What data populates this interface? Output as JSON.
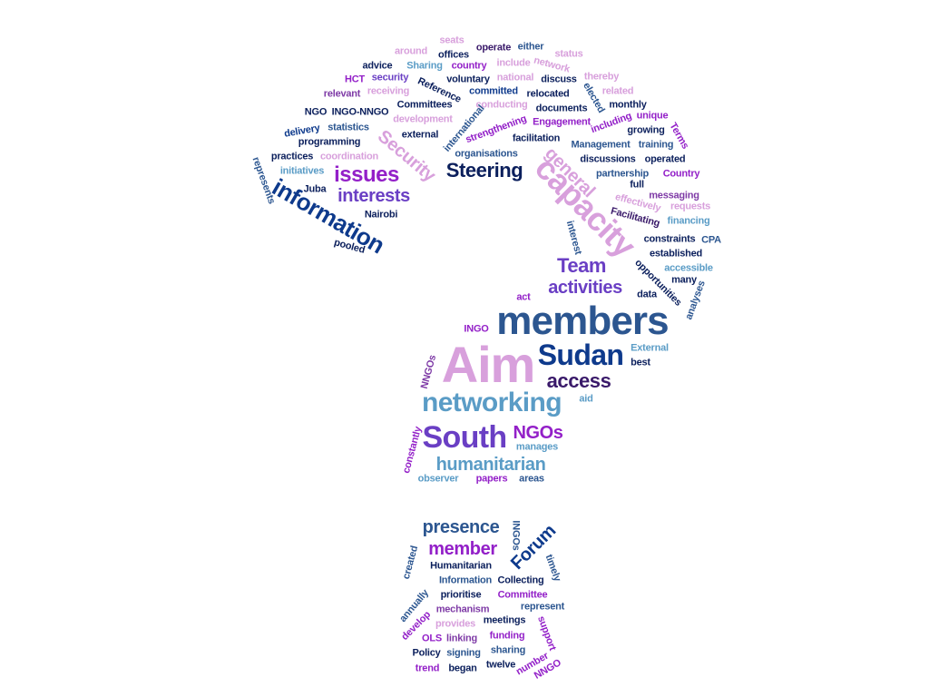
{
  "palette": {
    "navy": "#0b1f5c",
    "dark_blue": "#0e3a8c",
    "slate_blue": "#2c5690",
    "light_blue": "#5a9cc6",
    "purple": "#6a3fc4",
    "magenta": "#9320c8",
    "violet": "#7e3aa6",
    "pink": "#d8a0dc",
    "dark_purple": "#3a1a6a"
  },
  "words": [
    {
      "text": "members",
      "color": "slate_blue"
    },
    {
      "text": "Aim",
      "color": "pink"
    },
    {
      "text": "Sudan",
      "color": "dark_blue"
    },
    {
      "text": "networking",
      "color": "light_blue"
    },
    {
      "text": "South",
      "color": "purple"
    },
    {
      "text": "capacity",
      "color": "pink"
    },
    {
      "text": "information",
      "color": "dark_blue"
    },
    {
      "text": "issues",
      "color": "magenta"
    },
    {
      "text": "interests",
      "color": "purple"
    },
    {
      "text": "Steering",
      "color": "navy"
    },
    {
      "text": "Security",
      "color": "pink"
    },
    {
      "text": "general",
      "color": "pink"
    },
    {
      "text": "Team",
      "color": "purple"
    },
    {
      "text": "activities",
      "color": "purple"
    },
    {
      "text": "access",
      "color": "dark_purple"
    },
    {
      "text": "humanitarian",
      "color": "light_blue"
    },
    {
      "text": "NGOs",
      "color": "magenta"
    },
    {
      "text": "presence",
      "color": "slate_blue"
    },
    {
      "text": "member",
      "color": "magenta"
    },
    {
      "text": "Forum",
      "color": "dark_blue"
    },
    {
      "text": "seats",
      "color": "pink"
    },
    {
      "text": "around",
      "color": "pink"
    },
    {
      "text": "operate",
      "color": "dark_purple"
    },
    {
      "text": "either",
      "color": "slate_blue"
    },
    {
      "text": "offices",
      "color": "navy"
    },
    {
      "text": "status",
      "color": "pink"
    },
    {
      "text": "advice",
      "color": "navy"
    },
    {
      "text": "Sharing",
      "color": "light_blue"
    },
    {
      "text": "country",
      "color": "magenta"
    },
    {
      "text": "include",
      "color": "pink"
    },
    {
      "text": "network",
      "color": "pink"
    },
    {
      "text": "HCT",
      "color": "magenta"
    },
    {
      "text": "security",
      "color": "purple"
    },
    {
      "text": "voluntary",
      "color": "navy"
    },
    {
      "text": "national",
      "color": "pink"
    },
    {
      "text": "discuss",
      "color": "navy"
    },
    {
      "text": "thereby",
      "color": "pink"
    },
    {
      "text": "relevant",
      "color": "violet"
    },
    {
      "text": "receiving",
      "color": "pink"
    },
    {
      "text": "Reference",
      "color": "navy"
    },
    {
      "text": "committed",
      "color": "dark_blue"
    },
    {
      "text": "relocated",
      "color": "navy"
    },
    {
      "text": "elected",
      "color": "slate_blue"
    },
    {
      "text": "related",
      "color": "pink"
    },
    {
      "text": "Committees",
      "color": "navy"
    },
    {
      "text": "conducting",
      "color": "pink"
    },
    {
      "text": "documents",
      "color": "navy"
    },
    {
      "text": "monthly",
      "color": "navy"
    },
    {
      "text": "NGO",
      "color": "navy"
    },
    {
      "text": "INGO-NNGO",
      "color": "navy"
    },
    {
      "text": "development",
      "color": "pink"
    },
    {
      "text": "international",
      "color": "slate_blue"
    },
    {
      "text": "Engagement",
      "color": "magenta"
    },
    {
      "text": "including",
      "color": "magenta"
    },
    {
      "text": "unique",
      "color": "magenta"
    },
    {
      "text": "Terms",
      "color": "magenta"
    },
    {
      "text": "delivery",
      "color": "dark_blue"
    },
    {
      "text": "statistics",
      "color": "slate_blue"
    },
    {
      "text": "strengthening",
      "color": "magenta"
    },
    {
      "text": "growing",
      "color": "navy"
    },
    {
      "text": "external",
      "color": "navy"
    },
    {
      "text": "facilitation",
      "color": "navy"
    },
    {
      "text": "programming",
      "color": "navy"
    },
    {
      "text": "Management",
      "color": "slate_blue"
    },
    {
      "text": "training",
      "color": "slate_blue"
    },
    {
      "text": "organisations",
      "color": "slate_blue"
    },
    {
      "text": "discussions",
      "color": "navy"
    },
    {
      "text": "operated",
      "color": "navy"
    },
    {
      "text": "practices",
      "color": "navy"
    },
    {
      "text": "coordination",
      "color": "pink"
    },
    {
      "text": "initiatives",
      "color": "light_blue"
    },
    {
      "text": "partnership",
      "color": "slate_blue"
    },
    {
      "text": "Country",
      "color": "magenta"
    },
    {
      "text": "represents",
      "color": "slate_blue"
    },
    {
      "text": "Juba",
      "color": "navy"
    },
    {
      "text": "full",
      "color": "navy"
    },
    {
      "text": "messaging",
      "color": "violet"
    },
    {
      "text": "effectively",
      "color": "pink"
    },
    {
      "text": "requests",
      "color": "pink"
    },
    {
      "text": "Facilitating",
      "color": "dark_purple"
    },
    {
      "text": "Nairobi",
      "color": "navy"
    },
    {
      "text": "financing",
      "color": "light_blue"
    },
    {
      "text": "interest",
      "color": "slate_blue"
    },
    {
      "text": "constraints",
      "color": "navy"
    },
    {
      "text": "CPA",
      "color": "slate_blue"
    },
    {
      "text": "pooled",
      "color": "navy"
    },
    {
      "text": "established",
      "color": "navy"
    },
    {
      "text": "opportunities",
      "color": "navy"
    },
    {
      "text": "accessible",
      "color": "light_blue"
    },
    {
      "text": "many",
      "color": "navy"
    },
    {
      "text": "analyses",
      "color": "slate_blue"
    },
    {
      "text": "data",
      "color": "navy"
    },
    {
      "text": "act",
      "color": "magenta"
    },
    {
      "text": "INGO",
      "color": "magenta"
    },
    {
      "text": "External",
      "color": "light_blue"
    },
    {
      "text": "best",
      "color": "navy"
    },
    {
      "text": "NNGOs",
      "color": "violet"
    },
    {
      "text": "aid",
      "color": "light_blue"
    },
    {
      "text": "constantly",
      "color": "magenta"
    },
    {
      "text": "manages",
      "color": "light_blue"
    },
    {
      "text": "observer",
      "color": "light_blue"
    },
    {
      "text": "papers",
      "color": "magenta"
    },
    {
      "text": "areas",
      "color": "slate_blue"
    },
    {
      "text": "INGOs",
      "color": "slate_blue"
    },
    {
      "text": "timely",
      "color": "slate_blue"
    },
    {
      "text": "created",
      "color": "slate_blue"
    },
    {
      "text": "Humanitarian",
      "color": "navy"
    },
    {
      "text": "Information",
      "color": "slate_blue"
    },
    {
      "text": "Collecting",
      "color": "navy"
    },
    {
      "text": "annually",
      "color": "slate_blue"
    },
    {
      "text": "prioritise",
      "color": "navy"
    },
    {
      "text": "Committee",
      "color": "magenta"
    },
    {
      "text": "represent",
      "color": "slate_blue"
    },
    {
      "text": "develop",
      "color": "magenta"
    },
    {
      "text": "mechanism",
      "color": "violet"
    },
    {
      "text": "meetings",
      "color": "navy"
    },
    {
      "text": "support",
      "color": "magenta"
    },
    {
      "text": "provides",
      "color": "pink"
    },
    {
      "text": "OLS",
      "color": "magenta"
    },
    {
      "text": "linking",
      "color": "violet"
    },
    {
      "text": "funding",
      "color": "magenta"
    },
    {
      "text": "Policy",
      "color": "navy"
    },
    {
      "text": "signing",
      "color": "slate_blue"
    },
    {
      "text": "sharing",
      "color": "slate_blue"
    },
    {
      "text": "number",
      "color": "magenta"
    },
    {
      "text": "trend",
      "color": "magenta"
    },
    {
      "text": "began",
      "color": "navy"
    },
    {
      "text": "twelve",
      "color": "navy"
    },
    {
      "text": "NNGO",
      "color": "magenta"
    }
  ]
}
